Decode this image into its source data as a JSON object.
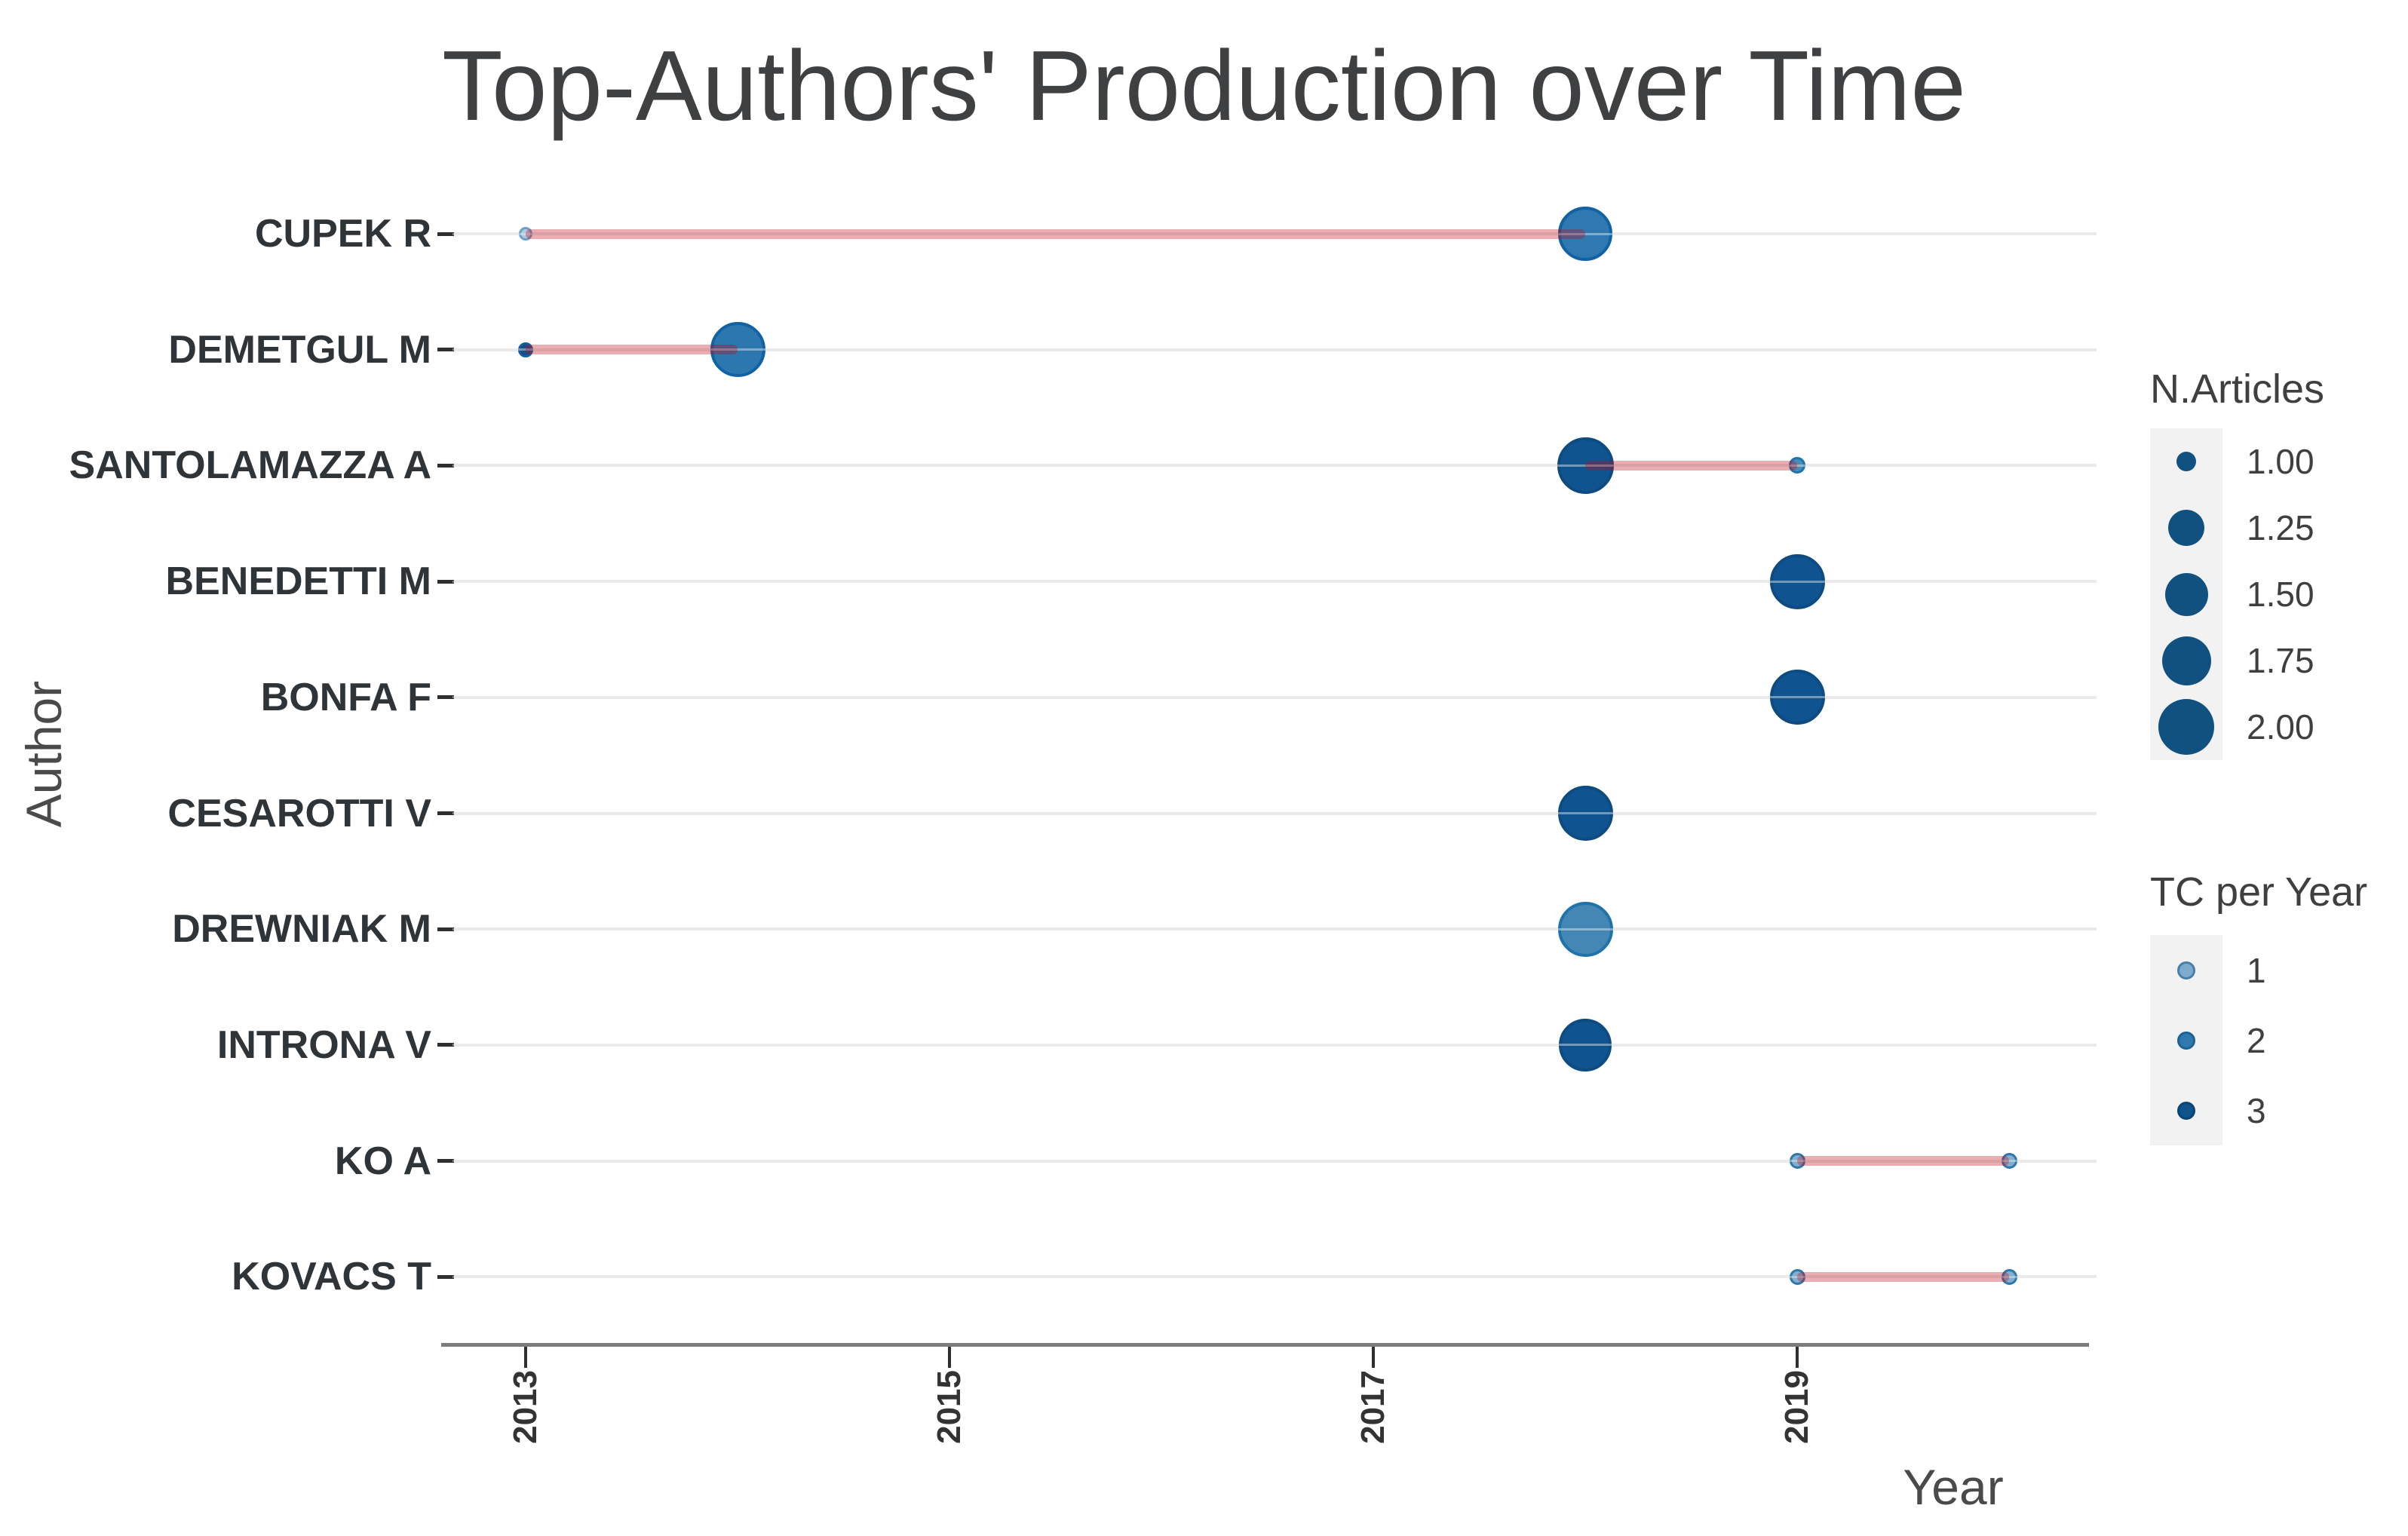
{
  "title": "Top-Authors' Production over Time",
  "axes": {
    "x_label": "Year",
    "y_label": "Author",
    "x_tick_labels": [
      "2013",
      "2015",
      "2017",
      "2019"
    ]
  },
  "legend": {
    "size": {
      "title": "N.Articles",
      "dot_color": "#11517F",
      "items": [
        {
          "label": "1.00",
          "d": 26
        },
        {
          "label": "1.25",
          "d": 48
        },
        {
          "label": "1.50",
          "d": 57
        },
        {
          "label": "1.75",
          "d": 65
        },
        {
          "label": "2.00",
          "d": 74
        }
      ]
    },
    "color": {
      "title": "TC per Year",
      "dot_d": 24,
      "items": [
        {
          "label": "1",
          "fill": "#7CABCD",
          "border": "#477FA8"
        },
        {
          "label": "2",
          "fill": "#2F79AE",
          "border": "#1D6292"
        },
        {
          "label": "3",
          "fill": "#0E538C",
          "border": "#0B4473"
        }
      ]
    }
  },
  "chart_data": {
    "type": "scatter",
    "title": "Top-Authors' Production over Time",
    "xlabel": "Year",
    "ylabel": "Author",
    "x_ticks": [
      2013,
      2015,
      2017,
      2019
    ],
    "x_range": [
      2012.65,
      2020.4
    ],
    "grid": "horizontal-only",
    "legend_position": "right",
    "size_variable": "N.Articles",
    "color_variable": "TC per Year",
    "authors": [
      {
        "name": "CUPEK R",
        "points": [
          {
            "year": 2013,
            "n_articles": 1,
            "tc_per_year": 1,
            "d": 18,
            "fill": "#AECBE3",
            "border": "#6F9FC6"
          },
          {
            "year": 2018,
            "n_articles": 2,
            "tc_per_year": 2,
            "d": 72,
            "fill": "#2F79B0",
            "border": "#1162A4"
          }
        ]
      },
      {
        "name": "DEMETGUL M",
        "points": [
          {
            "year": 2013,
            "n_articles": 1,
            "tc_per_year": 3,
            "d": 20,
            "fill": "#1C4C87",
            "border": "#135E9E"
          },
          {
            "year": 2014,
            "n_articles": 2,
            "tc_per_year": 2,
            "d": 73,
            "fill": "#2B77AE",
            "border": "#1162A4"
          }
        ]
      },
      {
        "name": "SANTOLAMAZZA A",
        "points": [
          {
            "year": 2018,
            "n_articles": 2,
            "tc_per_year": 3,
            "d": 75,
            "fill": "#10548F",
            "border": "#0D4B80"
          },
          {
            "year": 2019,
            "n_articles": 1,
            "tc_per_year": 2,
            "d": 22,
            "fill": "#4A8CB8",
            "border": "#1E73AA"
          }
        ]
      },
      {
        "name": "BENEDETTI M",
        "points": [
          {
            "year": 2019,
            "n_articles": 2,
            "tc_per_year": 3,
            "d": 73,
            "fill": "#0F5390",
            "border": "#0D4B80"
          }
        ]
      },
      {
        "name": "BONFA F",
        "points": [
          {
            "year": 2019,
            "n_articles": 2,
            "tc_per_year": 3,
            "d": 73,
            "fill": "#0F5390",
            "border": "#0D4B80"
          }
        ]
      },
      {
        "name": "CESAROTTI V",
        "points": [
          {
            "year": 2018,
            "n_articles": 2,
            "tc_per_year": 3,
            "d": 73,
            "fill": "#0F5390",
            "border": "#0D4B80"
          }
        ]
      },
      {
        "name": "DREWNIAK M",
        "points": [
          {
            "year": 2018,
            "n_articles": 2,
            "tc_per_year": 1.5,
            "d": 73,
            "fill": "#4587B4",
            "border": "#1E73AA"
          }
        ]
      },
      {
        "name": "INTRONA V",
        "points": [
          {
            "year": 2018,
            "n_articles": 2,
            "tc_per_year": 3,
            "d": 70,
            "fill": "#0F5390",
            "border": "#0D4B80"
          }
        ]
      },
      {
        "name": "KO A",
        "points": [
          {
            "year": 2019,
            "n_articles": 1,
            "tc_per_year": 1,
            "d": 21,
            "fill": "#7FB0D2",
            "border": "#2E77A8"
          },
          {
            "year": 2020,
            "n_articles": 1,
            "tc_per_year": 1,
            "d": 21,
            "fill": "#7FB0D2",
            "border": "#2E77A8"
          }
        ]
      },
      {
        "name": "KOVACS T",
        "points": [
          {
            "year": 2019,
            "n_articles": 1,
            "tc_per_year": 1,
            "d": 21,
            "fill": "#7FB0D2",
            "border": "#2E77A8"
          },
          {
            "year": 2020,
            "n_articles": 1,
            "tc_per_year": 1,
            "d": 21,
            "fill": "#7FB0D2",
            "border": "#2E77A8"
          }
        ]
      }
    ]
  },
  "colors": {
    "segment": "rgba(190,10,20,0.33)",
    "grid": "#E9E9E9",
    "axis_line": "#7B7B7B",
    "tick": "#2F2F2F",
    "title_text": "#3F4042",
    "axis_title_text": "#4A4A4A",
    "axis_text": "#333333",
    "author_text": "#2F3438",
    "legend_text": "#3F3F3F",
    "legend_key_bg": "#F2F2F2",
    "background": "#FFFFFF"
  }
}
